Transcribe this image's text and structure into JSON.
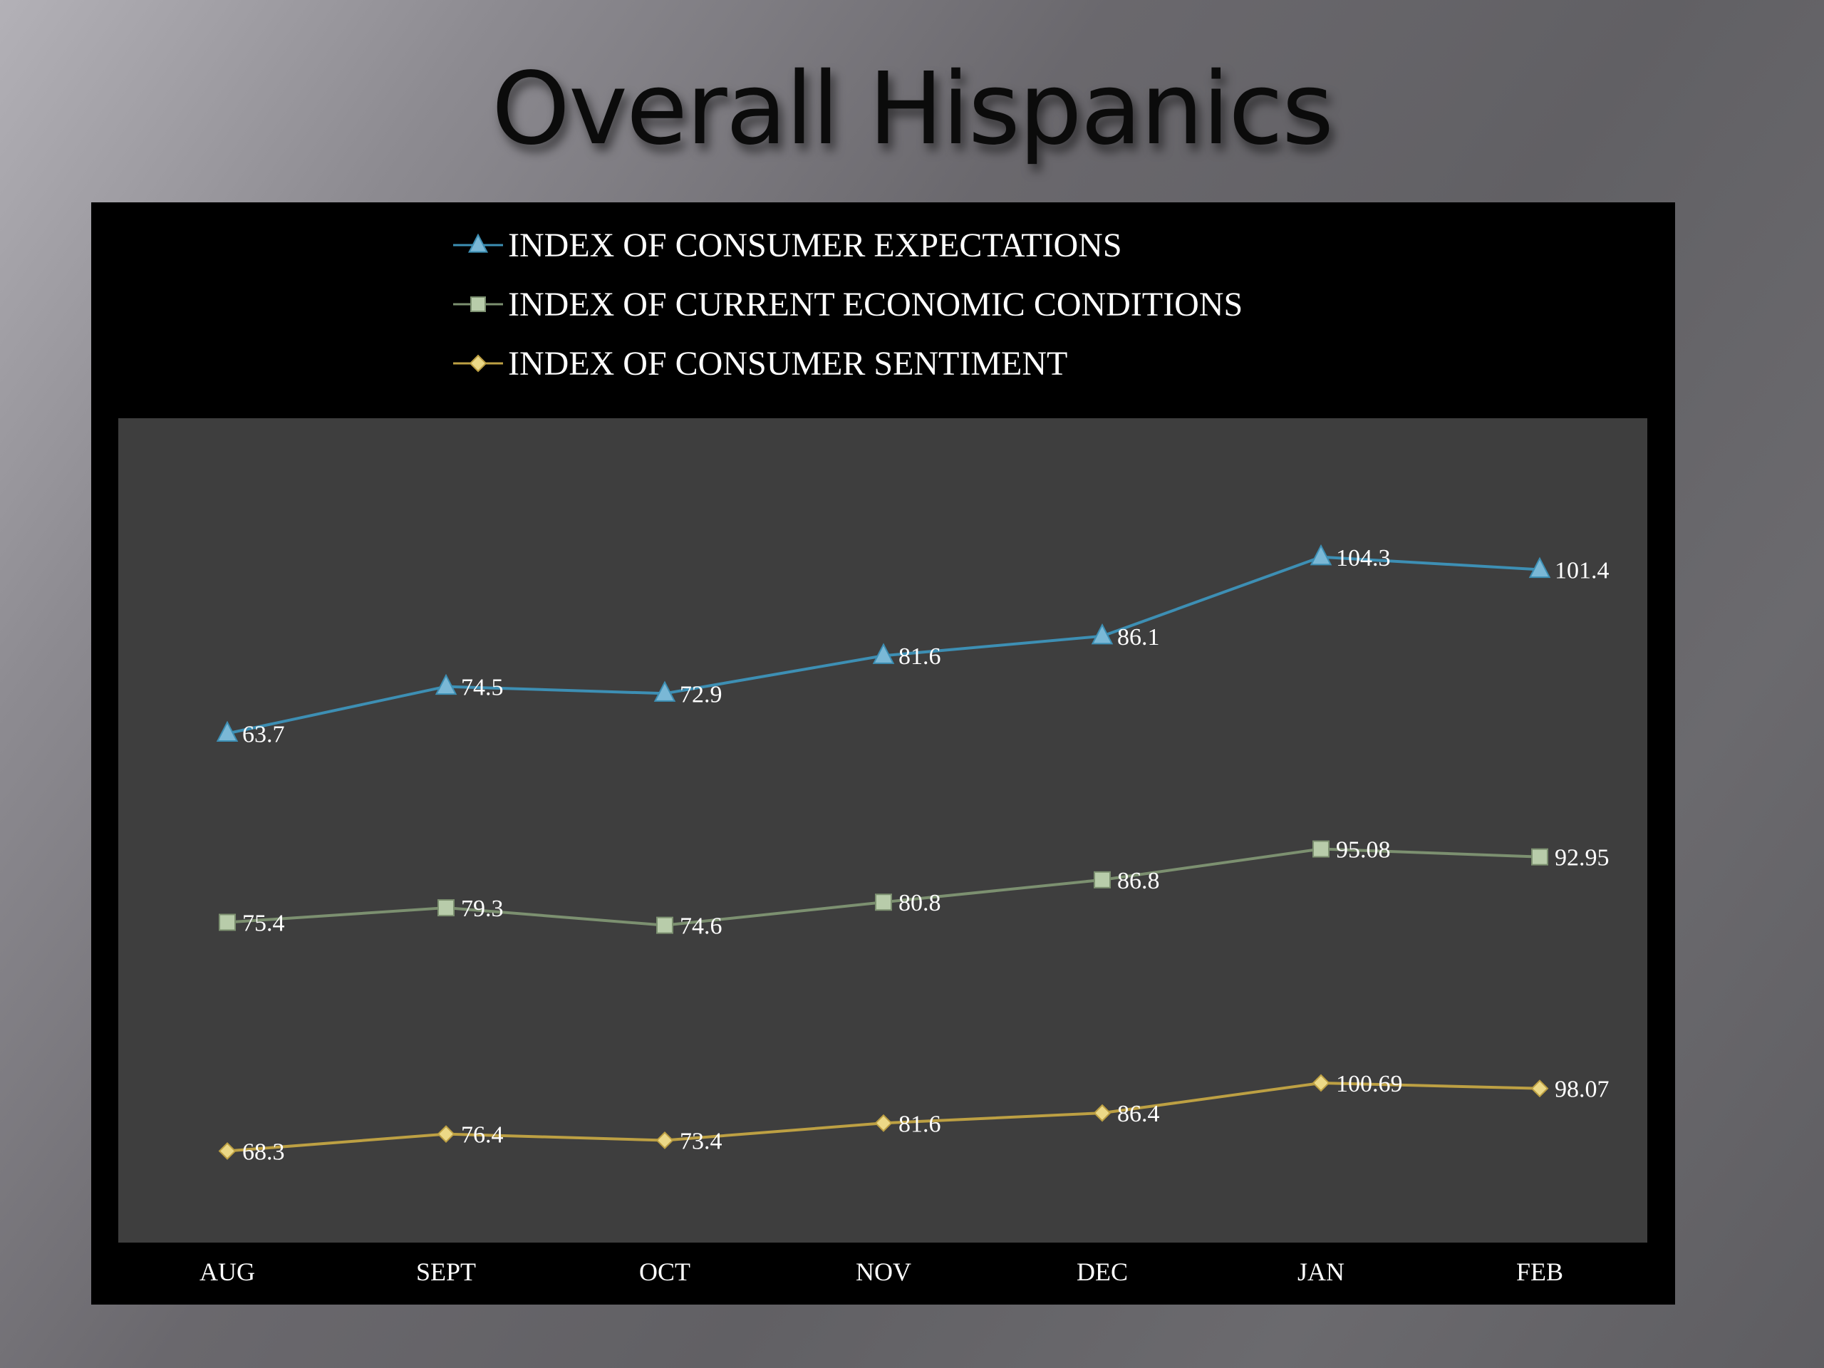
{
  "slide": {
    "title": "Overall Hispanics"
  },
  "chart_data": {
    "type": "line",
    "categories": [
      "AUG",
      "SEPT",
      "OCT",
      "NOV",
      "DEC",
      "JAN",
      "FEB"
    ],
    "series": [
      {
        "name": "INDEX OF CONSUMER EXPECTATIONS",
        "marker": "triangle",
        "color": "#3d8fb4",
        "marker_color": "#7ab8d6",
        "values": [
          63.7,
          74.5,
          72.9,
          81.6,
          86.1,
          104.3,
          101.4
        ],
        "labels": [
          "63.7",
          "74.5",
          "72.9",
          "81.6",
          "86.1",
          "104.3",
          "101.4"
        ]
      },
      {
        "name": "INDEX OF CURRENT ECONOMIC CONDITIONS",
        "marker": "square",
        "color": "#7c9070",
        "marker_color": "#b8ccaa",
        "values": [
          75.4,
          79.3,
          74.6,
          80.8,
          86.8,
          95.08,
          92.95
        ],
        "labels": [
          "75.4",
          "79.3",
          "74.6",
          "80.8",
          "86.8",
          "95.08",
          "92.95"
        ]
      },
      {
        "name": "INDEX OF CONSUMER SENTIMENT",
        "marker": "diamond",
        "color": "#bda043",
        "marker_color": "#ecd987",
        "values": [
          68.3,
          76.4,
          73.4,
          81.6,
          86.4,
          100.69,
          98.07
        ],
        "labels": [
          "68.3",
          "76.4",
          "73.4",
          "81.6",
          "86.4",
          "100.69",
          "98.07"
        ]
      }
    ],
    "legend_position": "top",
    "grid": false,
    "plot_background": "#3e3e3e",
    "frame_background": "#000000"
  }
}
